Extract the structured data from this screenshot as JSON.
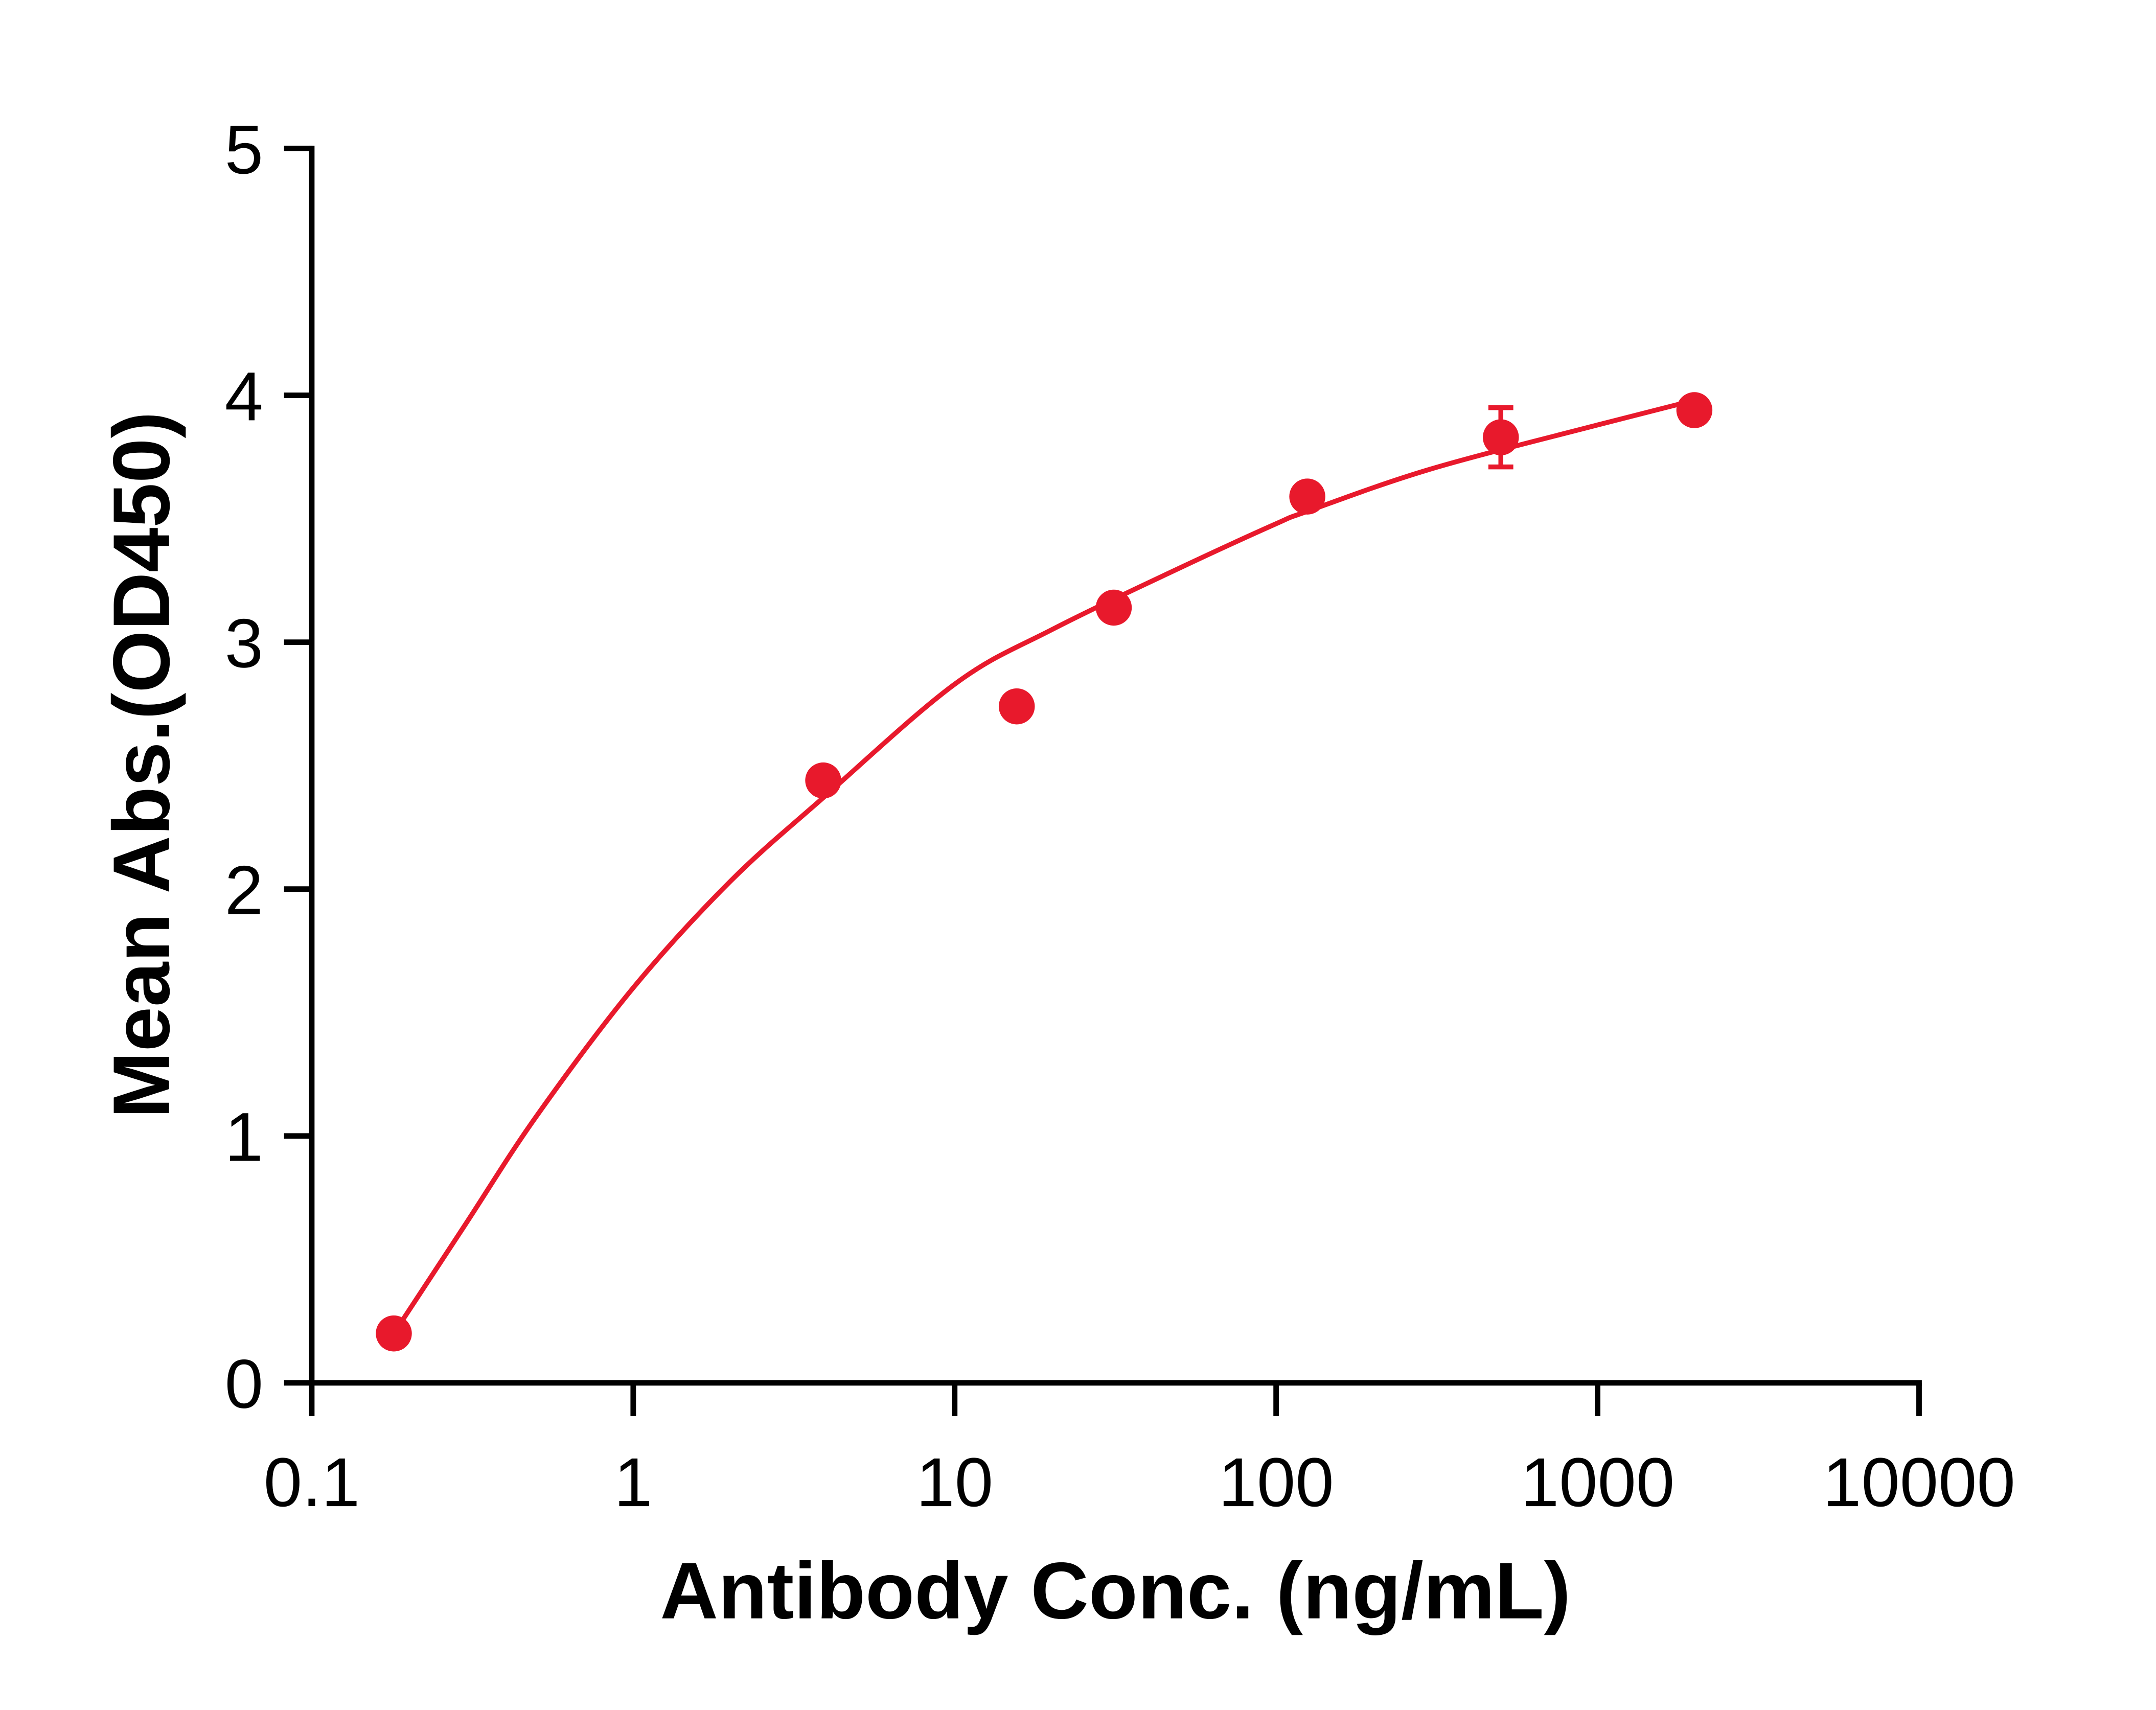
{
  "chart_data": {
    "type": "scatter",
    "title": "",
    "xlabel": "Antibody Conc. (ng/mL)",
    "ylabel": "Mean Abs.(OD450)",
    "xscale": "log",
    "xlim": [
      0.1,
      10000
    ],
    "ylim": [
      0,
      5
    ],
    "xticks": [
      "0.1",
      "1",
      "10",
      "100",
      "1000",
      "10000"
    ],
    "xtick_values": [
      0.1,
      1,
      10,
      100,
      1000,
      10000
    ],
    "yticks": [
      "0",
      "1",
      "2",
      "3",
      "4",
      "5"
    ],
    "ytick_values": [
      0,
      1,
      2,
      3,
      4,
      5
    ],
    "grid": false,
    "color": "#e8192c",
    "series": [
      {
        "name": "Mean Abs.",
        "x": [
          0.18,
          3.9,
          15.6,
          31.25,
          125,
          500,
          2000
        ],
        "y": [
          0.2,
          2.44,
          2.74,
          3.14,
          3.59,
          3.83,
          3.94
        ],
        "error": [
          0,
          0,
          0,
          0,
          0,
          0.12,
          0
        ]
      }
    ],
    "fit_curve": {
      "x": [
        0.18,
        0.3,
        0.5,
        1,
        2,
        3.9,
        10,
        20,
        50,
        100,
        125,
        300,
        1000,
        2000
      ],
      "y": [
        0.2,
        0.64,
        1.08,
        1.6,
        2.03,
        2.37,
        2.83,
        3.05,
        3.3,
        3.48,
        3.53,
        3.7,
        3.88,
        3.98
      ]
    }
  }
}
